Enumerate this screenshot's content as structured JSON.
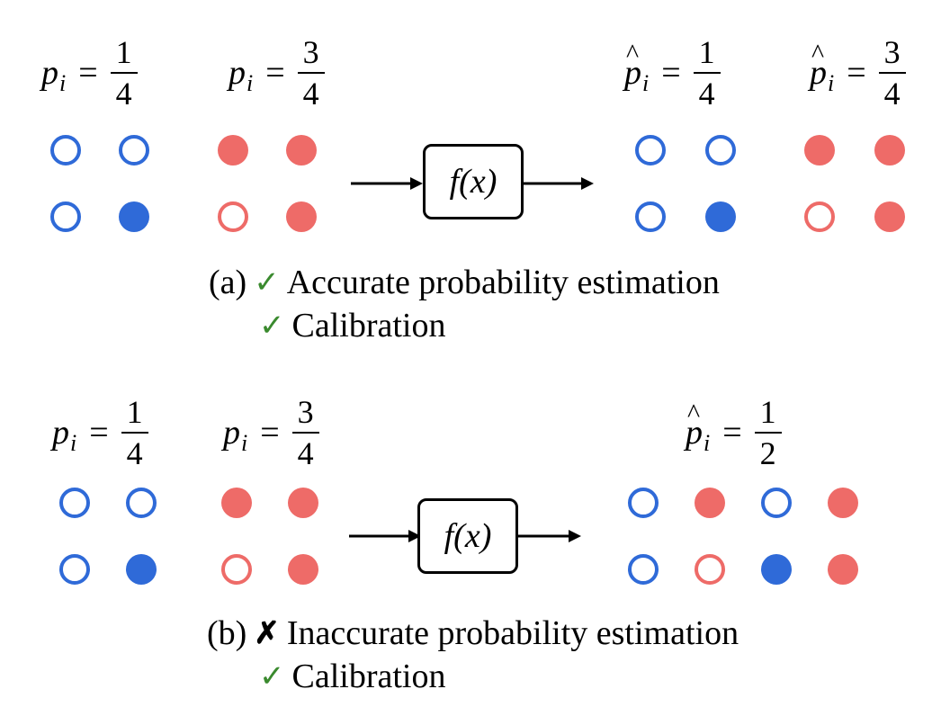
{
  "panel_a": {
    "eq1": {
      "var": "p",
      "sub": "i",
      "num": "1",
      "den": "4"
    },
    "eq2": {
      "var": "p",
      "sub": "i",
      "num": "3",
      "den": "4"
    },
    "eq3": {
      "var": "p",
      "sub": "i",
      "num": "1",
      "den": "4"
    },
    "eq4": {
      "var": "p",
      "sub": "i",
      "num": "3",
      "den": "4"
    },
    "function_label": "f(x)",
    "caption_label": "(a)",
    "line1_text": "Accurate probability estimation",
    "line2_text": "Calibration",
    "check_symbol": "✓"
  },
  "panel_b": {
    "eq1": {
      "var": "p",
      "sub": "i",
      "num": "1",
      "den": "4"
    },
    "eq2": {
      "var": "p",
      "sub": "i",
      "num": "3",
      "den": "4"
    },
    "eq3": {
      "var": "p",
      "sub": "i",
      "num": "1",
      "den": "2"
    },
    "function_label": "f(x)",
    "caption_label": "(b)",
    "line1_text": "Inaccurate probability estimation",
    "line2_text": "Calibration",
    "cross_symbol": "✗",
    "check_symbol": "✓"
  },
  "colors": {
    "blue": "#2f6ad8",
    "red": "#ee6b68",
    "check": "#3a8a2e"
  }
}
